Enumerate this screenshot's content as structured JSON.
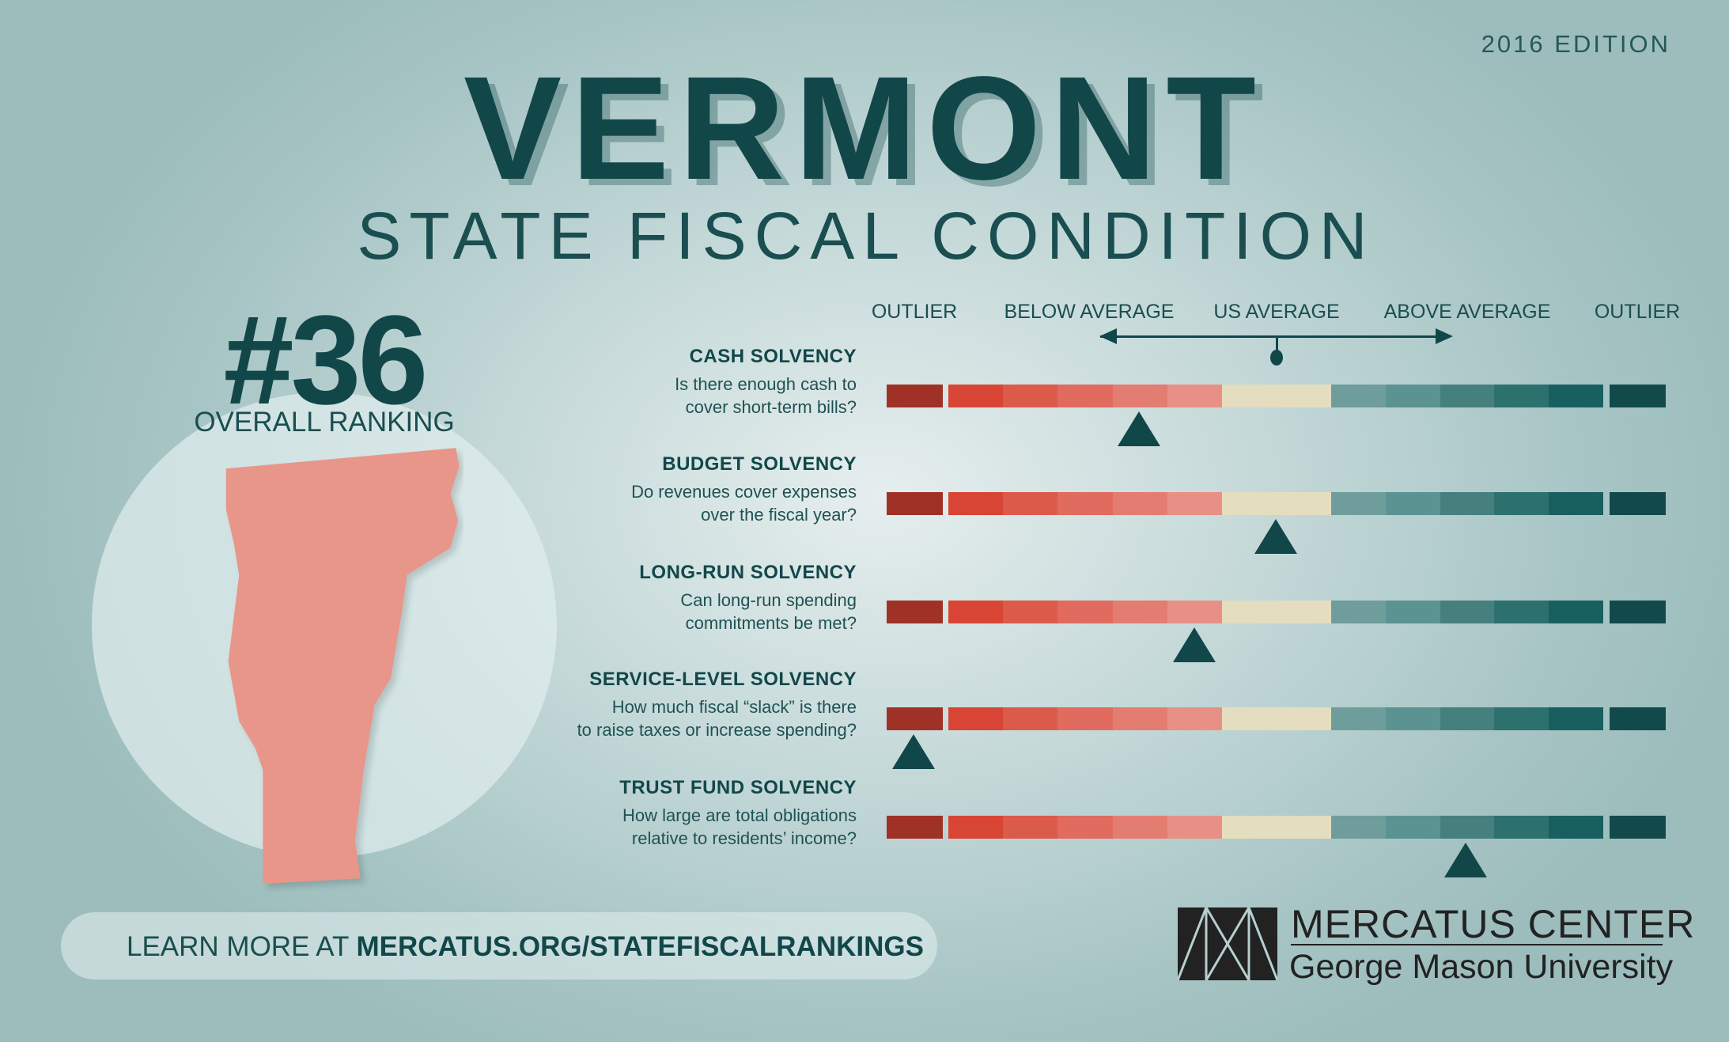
{
  "edition": "2016 EDITION",
  "title": "VERMONT",
  "subtitle": "STATE FISCAL CONDITION",
  "ranking": {
    "value": "#36",
    "label": "OVERALL RANKING"
  },
  "scale": {
    "labels": [
      "OUTLIER",
      "BELOW AVERAGE",
      "US AVERAGE",
      "ABOVE AVERAGE",
      "OUTLIER"
    ],
    "colors": [
      "#a03126",
      "#d84535",
      "#dc5a4a",
      "#e06b5e",
      "#e47d71",
      "#e89085",
      "#e5ddbf",
      "#e5ddbf",
      "#6f9d9c",
      "#5b9392",
      "#45807f",
      "#2d716f",
      "#17605f",
      "#124a4b"
    ]
  },
  "metrics": [
    {
      "title": "CASH SOLVENCY",
      "desc1": "Is there enough cash to",
      "desc2": "cover short-term bills?",
      "position": 0.324
    },
    {
      "title": "BUDGET SOLVENCY",
      "desc1": "Do revenues cover expenses",
      "desc2": "over the fiscal year?",
      "position": 0.5
    },
    {
      "title": "LONG-RUN SOLVENCY",
      "desc1": "Can long-run spending",
      "desc2": "commitments be met?",
      "position": 0.395
    },
    {
      "title": "SERVICE-LEVEL SOLVENCY",
      "desc1": "How much fiscal “slack” is there",
      "desc2": "to raise taxes or increase spending?",
      "position": 0.035
    },
    {
      "title": "TRUST FUND SOLVENCY",
      "desc1": "How large are total obligations",
      "desc2": "relative to residents’ income?",
      "position": 0.744
    }
  ],
  "footer": {
    "prefix": "LEARN MORE AT ",
    "link": "MERCATUS.ORG/STATEFISCALRANKINGS"
  },
  "logo": {
    "line1": "MERCATUS CENTER",
    "line2": "George Mason University"
  },
  "colors": {
    "primary": "#12474a",
    "state_fill": "#e8968a"
  }
}
